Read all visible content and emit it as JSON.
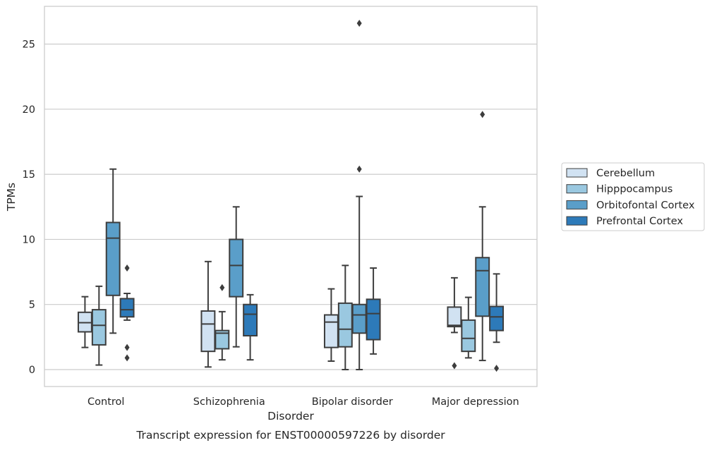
{
  "chart_data": {
    "type": "box",
    "xlabel": "Disorder",
    "ylabel": "TPMs",
    "caption": "Transcript expression for ENST00000597226 by disorder",
    "ylim": [
      -1.3,
      27.9
    ],
    "yticks": [
      0,
      5,
      10,
      15,
      20,
      25
    ],
    "grid": "horizontal",
    "legend_position": "right",
    "categories": [
      "Control",
      "Schizophrenia",
      "Bipolar disorder",
      "Major depression"
    ],
    "series": [
      {
        "name": "Cerebellum",
        "color": "#d1e2f2",
        "boxes": [
          {
            "whislo": 1.7,
            "q1": 2.9,
            "med": 3.6,
            "q3": 4.4,
            "whishi": 5.6,
            "fliers": []
          },
          {
            "whislo": 0.2,
            "q1": 1.4,
            "med": 3.5,
            "q3": 4.5,
            "whishi": 8.3,
            "fliers": []
          },
          {
            "whislo": 0.65,
            "q1": 1.7,
            "med": 3.65,
            "q3": 4.2,
            "whishi": 6.2,
            "fliers": []
          },
          {
            "whislo": 2.85,
            "q1": 3.3,
            "med": 3.4,
            "q3": 4.8,
            "whishi": 7.05,
            "fliers": [
              0.3
            ]
          }
        ]
      },
      {
        "name": "Hipppocampus",
        "color": "#9ac8e0",
        "boxes": [
          {
            "whislo": 0.35,
            "q1": 1.9,
            "med": 3.4,
            "q3": 4.6,
            "whishi": 6.4,
            "fliers": []
          },
          {
            "whislo": 0.75,
            "q1": 1.6,
            "med": 2.8,
            "q3": 3.0,
            "whishi": 4.45,
            "fliers": [
              6.3
            ]
          },
          {
            "whislo": 0.0,
            "q1": 1.75,
            "med": 3.1,
            "q3": 5.1,
            "whishi": 8.0,
            "fliers": []
          },
          {
            "whislo": 0.9,
            "q1": 1.4,
            "med": 2.4,
            "q3": 3.8,
            "whishi": 5.55,
            "fliers": []
          }
        ]
      },
      {
        "name": "Orbitofontal Cortex",
        "color": "#5a9ec9",
        "boxes": [
          {
            "whislo": 2.8,
            "q1": 5.7,
            "med": 10.1,
            "q3": 11.3,
            "whishi": 15.4,
            "fliers": []
          },
          {
            "whislo": 1.75,
            "q1": 5.6,
            "med": 8.0,
            "q3": 10.0,
            "whishi": 12.5,
            "fliers": []
          },
          {
            "whislo": 0.0,
            "q1": 2.8,
            "med": 4.2,
            "q3": 5.0,
            "whishi": 13.3,
            "fliers": [
              15.4,
              26.6
            ]
          },
          {
            "whislo": 0.7,
            "q1": 4.1,
            "med": 7.6,
            "q3": 8.6,
            "whishi": 12.5,
            "fliers": [
              19.6
            ]
          }
        ]
      },
      {
        "name": "Prefrontal Cortex",
        "color": "#2d7ab9",
        "boxes": [
          {
            "whislo": 3.8,
            "q1": 4.05,
            "med": 4.6,
            "q3": 5.45,
            "whishi": 5.85,
            "fliers": [
              0.9,
              1.7,
              7.8
            ]
          },
          {
            "whislo": 0.75,
            "q1": 2.6,
            "med": 4.25,
            "q3": 5.0,
            "whishi": 5.75,
            "fliers": []
          },
          {
            "whislo": 1.2,
            "q1": 2.3,
            "med": 4.3,
            "q3": 5.4,
            "whishi": 7.8,
            "fliers": []
          },
          {
            "whislo": 2.1,
            "q1": 3.0,
            "med": 4.05,
            "q3": 4.85,
            "whishi": 7.35,
            "fliers": [
              0.1
            ]
          }
        ]
      }
    ]
  }
}
